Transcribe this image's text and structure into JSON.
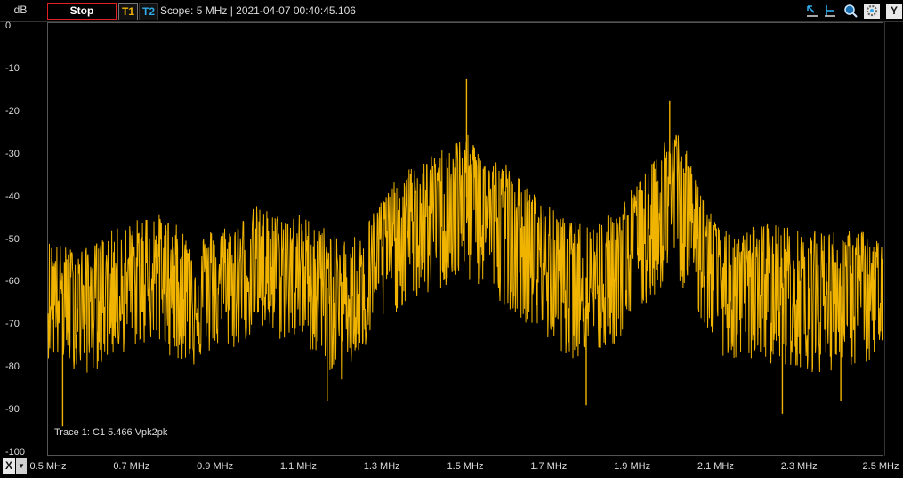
{
  "toolbar": {
    "y_unit": "dB",
    "stop_label": "Stop",
    "trace1_label": "T1",
    "trace2_label": "T2",
    "status_text": "Scope: 5 MHz | 2021-04-07 00:40:45.106",
    "y_axis_button": "Y",
    "x_axis_button": "X"
  },
  "icons": [
    "cursor-marker-icon",
    "cursor-level-icon",
    "zoom-icon",
    "settings-gear-icon",
    "axis-y-icon",
    "dropdown-arrow-icon"
  ],
  "colors": {
    "trace": "#f0b400",
    "background": "#000000",
    "stop_border": "#e02020",
    "t2": "#2fa9e8"
  },
  "trace_caption": "Trace 1: C1 5.466 Vpk2pk",
  "chart_data": {
    "type": "line",
    "xlabel": "",
    "ylabel": "dB",
    "xlim": [
      0.5,
      2.5
    ],
    "ylim": [
      -100,
      0
    ],
    "x_unit": "MHz",
    "x_ticks": [
      "0.5 MHz",
      "0.7 MHz",
      "0.9 MHz",
      "1.1 MHz",
      "1.3 MHz",
      "1.5 MHz",
      "1.7 MHz",
      "1.9 MHz",
      "2.1 MHz",
      "2.3 MHz",
      "2.5 MHz"
    ],
    "y_ticks": [
      "0",
      "-10",
      "-20",
      "-30",
      "-40",
      "-50",
      "-60",
      "-70",
      "-80",
      "-90",
      "-100"
    ],
    "series": [
      {
        "x": [
          0.5,
          0.55,
          0.6,
          0.65,
          0.7,
          0.75,
          0.8,
          0.85,
          0.9,
          0.95,
          1.0,
          1.05,
          1.1,
          1.15,
          1.2,
          1.25,
          1.3,
          1.35,
          1.4,
          1.45,
          1.5,
          1.55,
          1.6,
          1.65,
          1.7,
          1.75,
          1.8,
          1.85,
          1.9,
          1.95,
          2.0,
          2.05,
          2.1,
          2.15,
          2.2,
          2.25,
          2.3,
          2.35,
          2.4,
          2.45,
          2.5
        ],
        "values": [
          -62,
          -63,
          -64,
          -61,
          -60,
          -57,
          -59,
          -62,
          -61,
          -59,
          -56,
          -57,
          -57,
          -60,
          -64,
          -62,
          -52,
          -48,
          -44,
          -42,
          -40,
          -42,
          -46,
          -51,
          -56,
          -59,
          -59,
          -58,
          -51,
          -46,
          -35,
          -46,
          -59,
          -63,
          -59,
          -60,
          -62,
          -62,
          -61,
          -62,
          -63
        ],
        "min_values": [
          -78,
          -80,
          -82,
          -78,
          -76,
          -74,
          -78,
          -80,
          -76,
          -76,
          -72,
          -74,
          -74,
          -78,
          -84,
          -78,
          -70,
          -66,
          -64,
          -62,
          -60,
          -62,
          -66,
          -70,
          -74,
          -78,
          -78,
          -76,
          -70,
          -64,
          -58,
          -66,
          -76,
          -80,
          -78,
          -80,
          -80,
          -82,
          -80,
          -80,
          -78
        ],
        "max_values": [
          -50,
          -52,
          -52,
          -48,
          -46,
          -43,
          -46,
          -50,
          -47,
          -46,
          -42,
          -44,
          -44,
          -46,
          -50,
          -48,
          -40,
          -34,
          -32,
          -28,
          -25,
          -30,
          -32,
          -38,
          -42,
          -46,
          -46,
          -44,
          -38,
          -32,
          -22,
          -34,
          -46,
          -50,
          -46,
          -46,
          -48,
          -48,
          -48,
          -48,
          -50
        ],
        "spikes": [
          {
            "x": 1.503,
            "y": -12.5
          },
          {
            "x": 1.99,
            "y": -17.5
          },
          {
            "x": 0.535,
            "y": -94
          },
          {
            "x": 1.169,
            "y": -88
          },
          {
            "x": 1.79,
            "y": -89
          },
          {
            "x": 2.26,
            "y": -91
          },
          {
            "x": 2.4,
            "y": -88
          }
        ]
      }
    ]
  }
}
